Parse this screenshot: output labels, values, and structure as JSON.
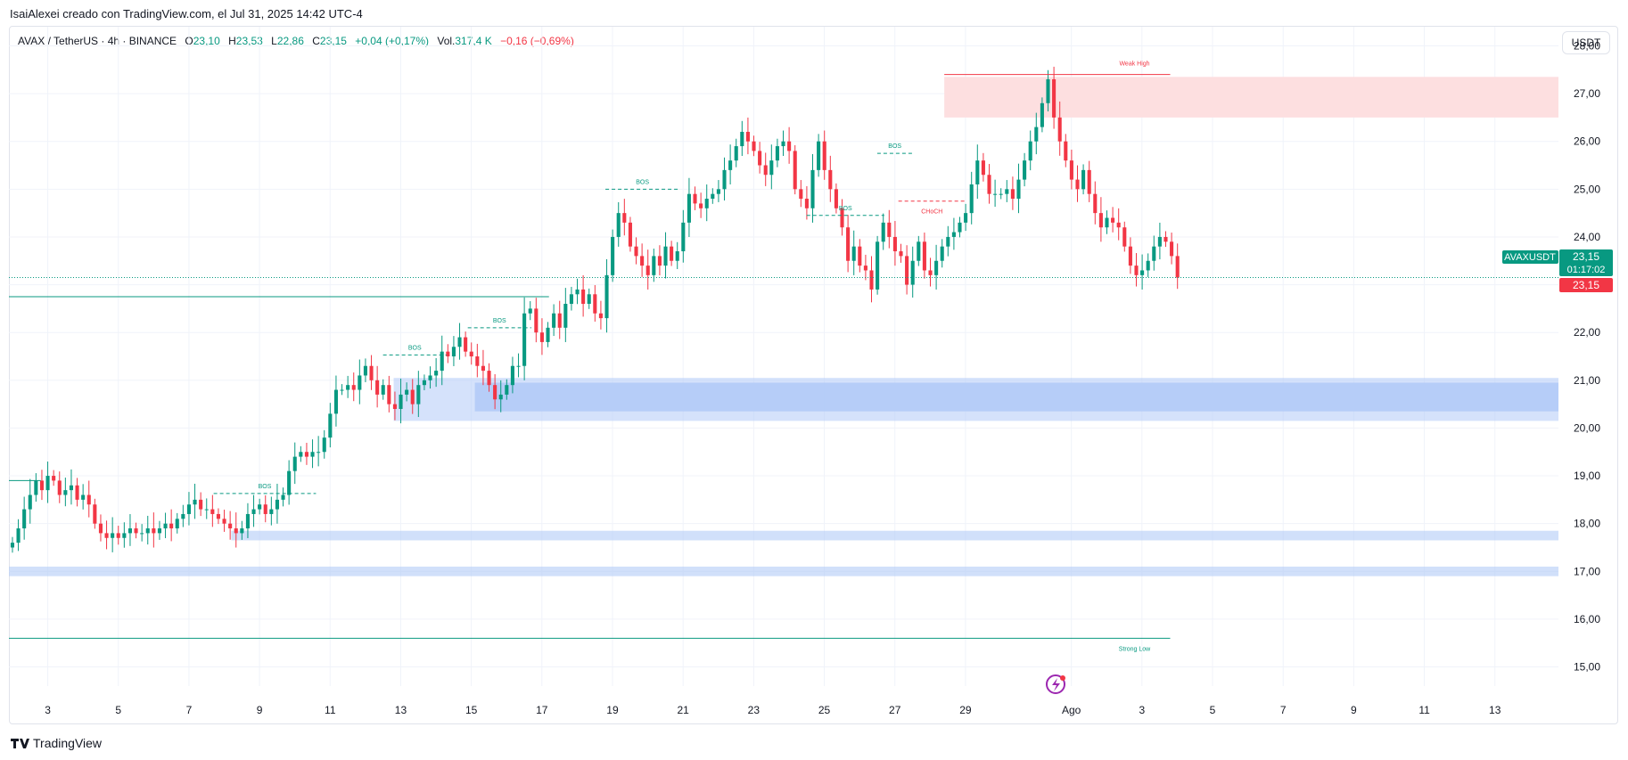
{
  "header": {
    "caption": "IsaiAlexei creado con TradingView.com, el Jul 31, 2025 14:42 UTC-4"
  },
  "legend": {
    "symbol": "AVAX / TetherUS · 4h · BINANCE",
    "o_label": "O",
    "o": "23,10",
    "h_label": "H",
    "h": "23,53",
    "l_label": "L",
    "l": "22,86",
    "c_label": "C",
    "c": "23,15",
    "change": "+0,04 (+0,17%)",
    "vol_label": "Vol.",
    "vol": "317,4 K",
    "vol_change": "−0,16 (−0,69%)"
  },
  "currency_button": "USDT",
  "price_tag": {
    "symbol": "AVAXUSDT",
    "price": "23,15",
    "countdown": "01:17:02",
    "red_price": "23,15"
  },
  "footer": {
    "brand": "TradingView"
  },
  "colors": {
    "up": "#089981",
    "down": "#f23645",
    "demand_zone": "#b3cbf7",
    "supply_zone": "#fddfe0",
    "grid": "#f0f3fa"
  },
  "chart_data": {
    "type": "candlestick",
    "ylim": [
      14.6,
      28.4
    ],
    "y_ticks": [
      "15,00",
      "16,00",
      "17,00",
      "18,00",
      "19,00",
      "20,00",
      "21,00",
      "22,00",
      "23,00",
      "24,00",
      "25,00",
      "26,00",
      "27,00",
      "28,00"
    ],
    "x_ticks": [
      {
        "label": "3",
        "day": 3
      },
      {
        "label": "5",
        "day": 5
      },
      {
        "label": "7",
        "day": 7
      },
      {
        "label": "9",
        "day": 9
      },
      {
        "label": "11",
        "day": 11
      },
      {
        "label": "13",
        "day": 13
      },
      {
        "label": "15",
        "day": 15
      },
      {
        "label": "17",
        "day": 17
      },
      {
        "label": "19",
        "day": 19
      },
      {
        "label": "21",
        "day": 21
      },
      {
        "label": "23",
        "day": 23
      },
      {
        "label": "25",
        "day": 25
      },
      {
        "label": "27",
        "day": 27
      },
      {
        "label": "29",
        "day": 29
      },
      {
        "label": "Ago",
        "day": 32
      },
      {
        "label": "3",
        "day": 34
      },
      {
        "label": "5",
        "day": 36
      },
      {
        "label": "7",
        "day": 38
      },
      {
        "label": "9",
        "day": 40
      },
      {
        "label": "11",
        "day": 42
      },
      {
        "label": "13",
        "day": 44
      }
    ],
    "day_range": [
      1.9,
      45.8
    ],
    "candle_days_per_bar": 0.1667,
    "start_day": 2.0,
    "closes": [
      17.6,
      17.9,
      18.3,
      18.6,
      18.9,
      18.7,
      19.0,
      18.9,
      18.6,
      18.7,
      18.8,
      18.5,
      18.6,
      18.4,
      18.0,
      17.8,
      17.7,
      17.8,
      17.7,
      17.8,
      17.9,
      17.8,
      17.8,
      17.9,
      17.8,
      17.9,
      18.0,
      17.9,
      18.1,
      18.2,
      18.4,
      18.5,
      18.3,
      18.3,
      18.2,
      18.1,
      18.0,
      17.9,
      17.8,
      17.9,
      18.2,
      18.3,
      18.4,
      18.2,
      18.3,
      18.5,
      18.6,
      19.1,
      19.4,
      19.5,
      19.4,
      19.5,
      19.5,
      19.8,
      20.3,
      20.8,
      20.8,
      20.9,
      20.8,
      21.1,
      21.3,
      21.0,
      20.7,
      20.9,
      20.5,
      20.4,
      20.7,
      20.8,
      20.5,
      20.9,
      21.0,
      21.1,
      21.2,
      21.6,
      21.5,
      21.7,
      21.9,
      21.6,
      21.5,
      21.3,
      21.2,
      20.9,
      20.6,
      20.7,
      20.9,
      21.3,
      21.3,
      22.4,
      22.5,
      22.0,
      21.8,
      22.1,
      22.4,
      22.1,
      22.6,
      22.8,
      22.9,
      22.6,
      22.8,
      22.4,
      22.3,
      23.2,
      24.0,
      24.5,
      24.3,
      23.8,
      23.6,
      23.4,
      23.2,
      23.6,
      23.4,
      23.8,
      23.5,
      23.7,
      24.3,
      24.9,
      24.7,
      24.6,
      24.8,
      24.9,
      25.0,
      25.4,
      25.6,
      25.9,
      26.2,
      26.0,
      25.8,
      25.5,
      25.3,
      25.6,
      25.9,
      26.0,
      25.8,
      25.0,
      24.8,
      24.6,
      25.4,
      26.0,
      25.4,
      25.0,
      24.6,
      24.2,
      23.5,
      23.8,
      23.4,
      23.3,
      22.9,
      23.9,
      24.3,
      24.0,
      23.7,
      23.6,
      23.0,
      23.5,
      23.9,
      23.3,
      23.2,
      23.5,
      23.8,
      24.0,
      24.1,
      24.3,
      24.5,
      25.1,
      25.6,
      25.3,
      24.9,
      24.9,
      24.9,
      25.0,
      24.8,
      25.2,
      25.6,
      26.0,
      26.3,
      26.8,
      27.3,
      26.5,
      26.0,
      25.6,
      25.2,
      25.0,
      25.4,
      24.9,
      24.5,
      24.2,
      24.4,
      24.3,
      24.2,
      23.8,
      23.4,
      23.2,
      23.3,
      23.5,
      23.8,
      24.0,
      23.9,
      23.6,
      23.15
    ],
    "structure_lines": [
      {
        "label": "BOS",
        "style": "dashed",
        "color": "up",
        "y": 18.63,
        "day_from": 7.7,
        "day_to": 10.6
      },
      {
        "label": "BOS",
        "style": "dashed",
        "color": "up",
        "y": 21.53,
        "day_from": 12.5,
        "day_to": 14.3
      },
      {
        "label": "BOS",
        "style": "dashed",
        "color": "up",
        "y": 22.1,
        "day_from": 14.9,
        "day_to": 16.7
      },
      {
        "label": "BOS",
        "style": "dashed",
        "color": "up",
        "y": 25.0,
        "day_from": 18.8,
        "day_to": 20.9
      },
      {
        "label": "BOS",
        "style": "dashed",
        "color": "up",
        "y": 24.45,
        "day_from": 24.5,
        "day_to": 26.7
      },
      {
        "label": "BOS",
        "style": "dashed",
        "color": "up",
        "y": 25.75,
        "day_from": 26.5,
        "day_to": 27.5
      },
      {
        "label": "CHoCH",
        "style": "dashed",
        "color": "down",
        "y": 24.75,
        "day_from": 27.1,
        "day_to": 29.0
      }
    ],
    "horizontal_lines": [
      {
        "label": "",
        "color": "up",
        "y": 22.75,
        "day_from": 1.9,
        "day_to": 17.2
      },
      {
        "label": "",
        "color": "up",
        "y": 18.9,
        "day_from": 1.9,
        "day_to": 2.8
      },
      {
        "label": "Weak High",
        "color": "down",
        "y": 27.4,
        "day_from": 28.4,
        "day_to": 34.8
      },
      {
        "label": "Strong Low",
        "color": "up",
        "y": 15.6,
        "day_from": 1.9,
        "day_to": 34.8
      }
    ],
    "zones": [
      {
        "kind": "demand",
        "y_top": 21.05,
        "y_bottom": 20.15,
        "day_from": 12.8,
        "day_to": 45.8,
        "opacity": 0.55
      },
      {
        "kind": "demand",
        "y_top": 20.95,
        "y_bottom": 20.35,
        "day_from": 15.1,
        "day_to": 45.8,
        "opacity": 0.9
      },
      {
        "kind": "demand",
        "y_top": 17.85,
        "y_bottom": 17.65,
        "day_from": 8.2,
        "day_to": 45.8,
        "opacity": 0.6
      },
      {
        "kind": "demand",
        "y_top": 17.1,
        "y_bottom": 16.9,
        "day_from": 1.9,
        "day_to": 45.8,
        "opacity": 0.6
      },
      {
        "kind": "supply",
        "y_top": 27.35,
        "y_bottom": 26.5,
        "day_from": 28.4,
        "day_to": 45.8,
        "opacity": 1
      }
    ],
    "last_price": 23.15
  }
}
